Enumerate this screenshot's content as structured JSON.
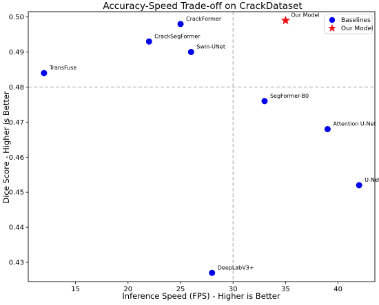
{
  "chart_data": {
    "type": "scatter",
    "title": "Accuracy-Speed Trade-off on CrackDataset",
    "xlabel": "Inference Speed (FPS) - Higher is Better",
    "ylabel": "Dice Score - Higher is Better",
    "xlim": [
      10.5,
      43.5
    ],
    "ylim": [
      0.4245,
      0.5015
    ],
    "xticks": [
      15,
      20,
      25,
      30,
      35,
      40
    ],
    "yticks": [
      0.43,
      0.44,
      0.45,
      0.46,
      0.47,
      0.48,
      0.49,
      0.5
    ],
    "grid": false,
    "reference_lines": {
      "x": 30,
      "y": 0.48,
      "style": "dashed",
      "color": "#b0b0b0"
    },
    "legend": {
      "placement": "top-right",
      "entries": [
        "Baselines",
        "Our Model"
      ]
    },
    "series": [
      {
        "name": "Baselines",
        "marker": "circle",
        "color": "#0000ee",
        "points": [
          {
            "label": "CrackFormer",
            "x": 25,
            "y": 0.498
          },
          {
            "label": "CrackSegFormer",
            "x": 22,
            "y": 0.493
          },
          {
            "label": "Swin-UNet",
            "x": 26,
            "y": 0.49
          },
          {
            "label": "TransFuse",
            "x": 12,
            "y": 0.484
          },
          {
            "label": "SegFormer-B0",
            "x": 33,
            "y": 0.476
          },
          {
            "label": "Attention U-Net",
            "x": 39,
            "y": 0.468
          },
          {
            "label": "U-Net",
            "x": 42,
            "y": 0.452
          },
          {
            "label": "DeepLabV3+",
            "x": 28,
            "y": 0.427
          }
        ]
      },
      {
        "name": "Our Model",
        "marker": "star",
        "color": "#ee1111",
        "points": [
          {
            "label": "Our Model",
            "x": 35,
            "y": 0.499
          }
        ]
      }
    ]
  }
}
